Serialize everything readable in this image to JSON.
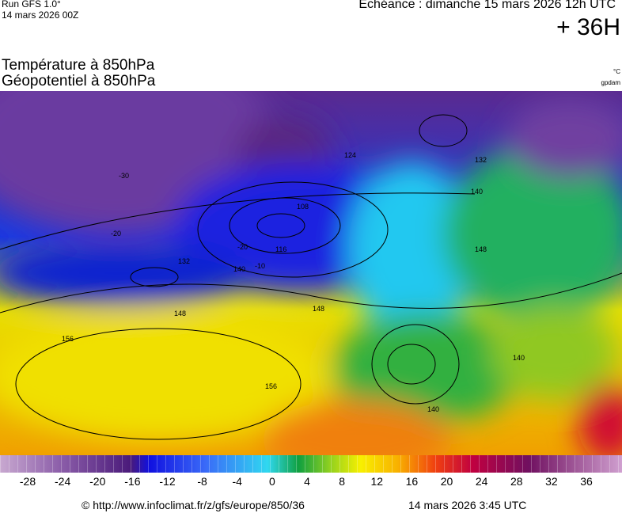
{
  "header": {
    "run": "Run GFS 1.0°",
    "date": "14 mars 2026 00Z",
    "echeance": "Echéance : dimanche 15 mars 2026 12h UTC",
    "lead": "+ 36H",
    "title1": "Température à 850hPa",
    "title2": "Géopotentiel à 850hPa",
    "unit1": "°C",
    "unit2": "gpdam"
  },
  "map": {
    "labels": [
      "156",
      "148",
      "148",
      "156",
      "140",
      "132",
      "124",
      "116",
      "108",
      "140",
      "132",
      "148",
      "140",
      "140",
      "-10",
      "-20",
      "-20",
      "-30"
    ]
  },
  "colorbar": {
    "ticks": [
      -28,
      -24,
      -20,
      -16,
      -12,
      -8,
      -4,
      0,
      4,
      8,
      12,
      16,
      20,
      24,
      28,
      32,
      36
    ]
  },
  "footer": {
    "url": "© http://www.infoclimat.fr/z/gfs/europe/850/36",
    "stamp": "14 mars 2026  3:45 UTC"
  }
}
